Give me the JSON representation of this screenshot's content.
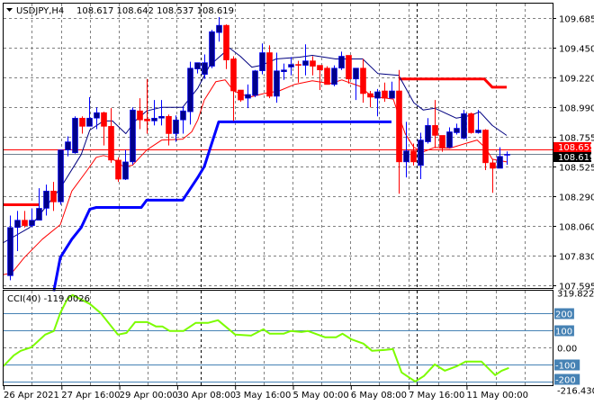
{
  "header": {
    "symbol_timeframe": "USDJPY,H4",
    "ohlc": "108.617 108.642 108.537 108.619",
    "menu_icon": "triangle-down-icon"
  },
  "colors": {
    "bull": "#00008b",
    "bull_wick": "#0000ff",
    "bear": "#ff0000",
    "ma_fast": "#000080",
    "ma_slow": "#ff0000",
    "stop_blue": "#0000ff",
    "stop_red": "#ff0000",
    "cci": "#7cfc00",
    "level": "#4682b4",
    "grid": "#808080",
    "bid_label": "#ff0000",
    "last_label": "#000000"
  },
  "chart_data": [
    {
      "type": "candlestick",
      "title": "USDJPY,H4",
      "ylim": [
        107.595,
        109.685
      ],
      "y_ticks": [
        "109.685",
        "109.450",
        "109.220",
        "108.990",
        "108.755",
        "108.525",
        "108.290",
        "108.060",
        "107.830",
        "107.595"
      ],
      "x_tick_labels": [
        "26 Apr 2021",
        "27 Apr 16:00",
        "29 Apr 00:00",
        "30 Apr 08:00",
        "3 May 16:00",
        "5 May 00:00",
        "6 May 08:00",
        "7 May 16:00",
        "11 May 00:00"
      ],
      "grid": true,
      "period_separators": [
        27,
        57
      ],
      "ohlc_order": [
        "open",
        "high",
        "low",
        "close"
      ],
      "candles": [
        [
          107.67,
          108.14,
          107.635,
          108.047
        ],
        [
          108.047,
          108.176,
          107.862,
          108.104
        ],
        [
          108.104,
          108.176,
          108.047,
          108.062
        ],
        [
          108.062,
          108.197,
          108.047,
          108.104
        ],
        [
          108.104,
          108.354,
          108.104,
          108.197
        ],
        [
          108.197,
          108.382,
          108.14,
          108.332
        ],
        [
          108.332,
          108.403,
          108.176,
          108.247
        ],
        [
          108.247,
          108.653,
          108.225,
          108.653
        ],
        [
          108.653,
          108.76,
          108.603,
          108.717
        ],
        [
          108.631,
          108.916,
          108.624,
          108.902
        ],
        [
          108.902,
          108.916,
          108.781,
          108.838
        ],
        [
          108.838,
          109.066,
          108.838,
          108.902
        ],
        [
          108.902,
          108.987,
          108.816,
          108.945
        ],
        [
          108.945,
          108.952,
          108.688,
          108.838
        ],
        [
          108.838,
          108.98,
          108.553,
          108.574
        ],
        [
          108.574,
          108.596,
          108.403,
          108.425
        ],
        [
          108.425,
          108.653,
          108.418,
          108.56
        ],
        [
          108.56,
          108.987,
          108.539,
          108.966
        ],
        [
          108.959,
          109.058,
          108.816,
          108.888
        ],
        [
          108.895,
          109.208,
          108.781,
          108.88
        ],
        [
          108.88,
          109.044,
          108.845,
          108.902
        ],
        [
          108.902,
          109.044,
          108.845,
          108.916
        ],
        [
          108.916,
          108.93,
          108.688,
          108.781
        ],
        [
          108.781,
          108.923,
          108.717,
          108.888
        ],
        [
          108.888,
          108.994,
          108.781,
          108.959
        ],
        [
          108.952,
          109.343,
          108.852,
          109.293
        ],
        [
          109.286,
          109.336,
          109.251,
          109.336
        ],
        [
          109.244,
          109.4,
          109.208,
          109.336
        ],
        [
          109.308,
          109.592,
          109.293,
          109.578
        ],
        [
          109.571,
          109.692,
          109.5,
          109.628
        ],
        [
          109.628,
          109.635,
          109.286,
          109.357
        ],
        [
          109.365,
          109.386,
          108.88,
          109.115
        ],
        [
          109.122,
          109.122,
          109.03,
          109.044
        ],
        [
          109.058,
          109.165,
          108.98,
          109.087
        ],
        [
          109.08,
          109.279,
          109.066,
          109.272
        ],
        [
          109.272,
          109.486,
          109.244,
          109.414
        ],
        [
          109.414,
          109.471,
          109.058,
          109.073
        ],
        [
          109.073,
          109.414,
          109.023,
          109.272
        ],
        [
          109.265,
          109.329,
          109.201,
          109.279
        ],
        [
          109.301,
          109.379,
          109.236,
          109.322
        ],
        [
          109.322,
          109.35,
          109.18,
          109.315
        ],
        [
          109.315,
          109.479,
          109.236,
          109.35
        ],
        [
          109.35,
          109.386,
          109.236,
          109.308
        ],
        [
          109.315,
          109.315,
          109.122,
          109.279
        ],
        [
          109.293,
          109.308,
          109.165,
          109.165
        ],
        [
          109.165,
          109.315,
          109.151,
          109.293
        ],
        [
          109.293,
          109.422,
          109.279,
          109.386
        ],
        [
          109.393,
          109.393,
          109.172,
          109.208
        ],
        [
          109.208,
          109.293,
          109.044,
          109.293
        ],
        [
          109.293,
          109.365,
          109.023,
          109.094
        ],
        [
          109.094,
          109.115,
          108.987,
          109.066
        ],
        [
          109.058,
          109.13,
          108.916,
          109.108
        ],
        [
          109.115,
          109.18,
          109.03,
          109.058
        ],
        [
          109.058,
          109.187,
          109.058,
          109.115
        ],
        [
          109.115,
          109.279,
          108.311,
          108.56
        ],
        [
          108.56,
          108.873,
          108.439,
          108.646
        ],
        [
          108.646,
          108.703,
          108.532,
          108.56
        ],
        [
          108.532,
          108.788,
          108.425,
          108.731
        ],
        [
          108.717,
          108.902,
          108.703,
          108.845
        ],
        [
          108.845,
          109.044,
          108.667,
          108.767
        ],
        [
          108.767,
          108.767,
          108.639,
          108.667
        ],
        [
          108.674,
          108.83,
          108.667,
          108.795
        ],
        [
          108.788,
          108.859,
          108.774,
          108.823
        ],
        [
          108.745,
          108.966,
          108.738,
          108.937
        ],
        [
          108.937,
          108.945,
          108.781,
          108.788
        ],
        [
          108.788,
          108.966,
          108.781,
          108.809
        ],
        [
          108.809,
          108.816,
          108.496,
          108.553
        ],
        [
          108.553,
          108.581,
          108.318,
          108.51
        ],
        [
          108.51,
          108.674,
          108.51,
          108.603
        ],
        [
          108.617,
          108.642,
          108.537,
          108.619
        ]
      ],
      "lines": {
        "ma_fast": [
          [
            -1,
            107.926
          ],
          [
            2.75,
            108.047
          ],
          [
            7,
            108.354
          ],
          [
            9.9,
            108.617
          ],
          [
            11.1,
            108.809
          ],
          [
            13,
            108.88
          ],
          [
            14.25,
            108.88
          ],
          [
            16.1,
            108.781
          ],
          [
            17.4,
            108.88
          ],
          [
            19,
            108.959
          ],
          [
            21.1,
            108.987
          ],
          [
            24,
            108.987
          ],
          [
            26.1,
            109.137
          ],
          [
            27.75,
            109.315
          ],
          [
            30.5,
            109.45
          ],
          [
            32,
            109.386
          ],
          [
            33.6,
            109.301
          ],
          [
            34.9,
            109.315
          ],
          [
            37,
            109.365
          ],
          [
            40.25,
            109.379
          ],
          [
            42,
            109.393
          ],
          [
            45.25,
            109.365
          ],
          [
            49,
            109.365
          ],
          [
            51.1,
            109.251
          ],
          [
            54,
            109.236
          ],
          [
            56.1,
            109.023
          ],
          [
            57.4,
            108.966
          ],
          [
            59,
            108.98
          ],
          [
            62,
            108.902
          ],
          [
            64,
            108.923
          ],
          [
            65.25,
            108.952
          ],
          [
            67,
            108.845
          ],
          [
            69,
            108.767
          ]
        ],
        "ma_slow": [
          [
            -1,
            107.677
          ],
          [
            0.25,
            107.691
          ],
          [
            2,
            107.812
          ],
          [
            4.5,
            107.955
          ],
          [
            7,
            108.069
          ],
          [
            8.6,
            108.332
          ],
          [
            10.75,
            108.496
          ],
          [
            12,
            108.596
          ],
          [
            13,
            108.61
          ],
          [
            14,
            108.596
          ],
          [
            15.75,
            108.524
          ],
          [
            17,
            108.532
          ],
          [
            19,
            108.653
          ],
          [
            21.1,
            108.731
          ],
          [
            24,
            108.738
          ],
          [
            25.25,
            108.795
          ],
          [
            26.1,
            108.888
          ],
          [
            27,
            109.044
          ],
          [
            28.6,
            109.187
          ],
          [
            29.9,
            109.201
          ],
          [
            31.1,
            109.115
          ],
          [
            33.25,
            109.066
          ],
          [
            35.25,
            109.094
          ],
          [
            37.4,
            109.115
          ],
          [
            39.5,
            109.165
          ],
          [
            42,
            109.194
          ],
          [
            44.5,
            109.172
          ],
          [
            46.1,
            109.201
          ],
          [
            48.6,
            109.151
          ],
          [
            50.25,
            109.073
          ],
          [
            53.25,
            109.051
          ],
          [
            54,
            108.923
          ],
          [
            54.9,
            108.781
          ],
          [
            56.1,
            108.674
          ],
          [
            57.4,
            108.638
          ],
          [
            59,
            108.674
          ],
          [
            61.1,
            108.667
          ],
          [
            63.25,
            108.703
          ],
          [
            64.9,
            108.731
          ],
          [
            66.1,
            108.667
          ],
          [
            67,
            108.581
          ],
          [
            69,
            108.56
          ]
        ],
        "stop_blue": [
          [
            6.1,
            107.549
          ],
          [
            7,
            107.812
          ],
          [
            8.6,
            107.955
          ],
          [
            9.9,
            108.047
          ],
          [
            11.1,
            108.19
          ],
          [
            12,
            108.204
          ],
          [
            18.25,
            108.204
          ],
          [
            19,
            108.261
          ],
          [
            24,
            108.261
          ],
          [
            26.1,
            108.439
          ],
          [
            27,
            108.524
          ],
          [
            29,
            108.873
          ],
          [
            53,
            108.873
          ]
        ],
        "stop_red_1": [
          [
            -1,
            108.225
          ],
          [
            4,
            108.225
          ]
        ],
        "stop_red_2": [
          [
            54,
            109.208
          ],
          [
            65.9,
            109.208
          ],
          [
            67,
            109.144
          ],
          [
            69,
            109.144
          ]
        ]
      },
      "price_lines": [
        {
          "label": "108.655",
          "value": 108.655,
          "kind": "bid"
        },
        {
          "label": "108.619",
          "value": 108.619,
          "kind": "last"
        }
      ]
    },
    {
      "type": "line",
      "title": "CCI(40) -119.0026",
      "ylim": [
        -216.4305,
        319.8226
      ],
      "y_ticks": [
        {
          "label": "319.8226",
          "value": 319.8226,
          "boxed": false
        },
        {
          "label": "200",
          "value": 200,
          "boxed": true
        },
        {
          "label": "100",
          "value": 100,
          "boxed": true
        },
        {
          "label": "0.00",
          "value": 0,
          "boxed": false
        },
        {
          "label": "-100",
          "value": -100,
          "boxed": true
        },
        {
          "label": "-200",
          "value": -200,
          "boxed": true
        },
        {
          "label": "-216.4305",
          "value": -216.4305,
          "boxed": false
        }
      ],
      "levels": [
        200,
        100,
        -100,
        -200
      ],
      "zero_line": 0,
      "points": [
        [
          -0.9,
          -110
        ],
        [
          0.55,
          -47
        ],
        [
          1.5,
          -21
        ],
        [
          3,
          0
        ],
        [
          4.9,
          74
        ],
        [
          6.1,
          95
        ],
        [
          7,
          200
        ],
        [
          8,
          284
        ],
        [
          8.7,
          305
        ],
        [
          11.1,
          253
        ],
        [
          12.6,
          200
        ],
        [
          15,
          74
        ],
        [
          16.2,
          84
        ],
        [
          17.4,
          147
        ],
        [
          19.1,
          147
        ],
        [
          20.3,
          121
        ],
        [
          21.2,
          121
        ],
        [
          22.2,
          95
        ],
        [
          24.1,
          95
        ],
        [
          25.8,
          142
        ],
        [
          27.5,
          142
        ],
        [
          28.9,
          158
        ],
        [
          31.3,
          74
        ],
        [
          33.5,
          68
        ],
        [
          35.2,
          105
        ],
        [
          36.1,
          79
        ],
        [
          38,
          79
        ],
        [
          39,
          95
        ],
        [
          40.5,
          89
        ],
        [
          41.4,
          95
        ],
        [
          43.8,
          58
        ],
        [
          45.3,
          58
        ],
        [
          46.2,
          79
        ],
        [
          47.4,
          47
        ],
        [
          49.1,
          21
        ],
        [
          50.3,
          -21
        ],
        [
          52,
          -16
        ],
        [
          53.2,
          -11
        ],
        [
          54.4,
          -147
        ],
        [
          56.3,
          -200
        ],
        [
          57.5,
          -168
        ],
        [
          59,
          -100
        ],
        [
          60.4,
          -137
        ],
        [
          62.1,
          -110
        ],
        [
          63.3,
          -84
        ],
        [
          65.5,
          -84
        ],
        [
          67.4,
          -163
        ],
        [
          68.3,
          -137
        ],
        [
          69.3,
          -121
        ]
      ]
    }
  ]
}
